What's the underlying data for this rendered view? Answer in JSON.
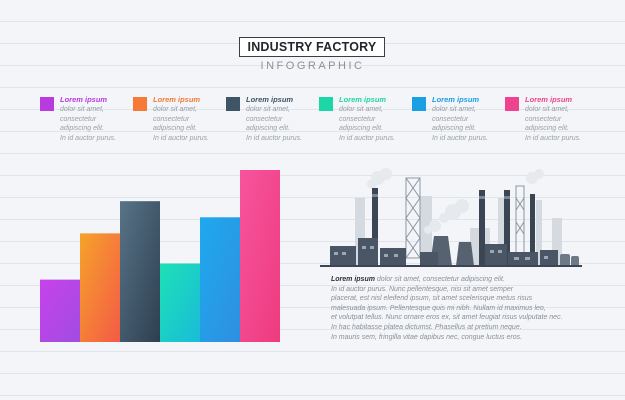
{
  "header": {
    "title": "INDUSTRY FACTORY",
    "subtitle": "INFOGRAPHIC"
  },
  "legend": [
    {
      "title": "Lorem ipsum",
      "body": [
        "dolor sit amet,",
        "consectetur",
        "adipiscing elit.",
        "In id auctor purus."
      ],
      "color": "#b93be0"
    },
    {
      "title": "Lorem ipsum",
      "body": [
        "dolor sit amet,",
        "consectetur",
        "adipiscing elit.",
        "In id auctor purus."
      ],
      "color": "#f57a36"
    },
    {
      "title": "Lorem ipsum",
      "body": [
        "dolor sit amet,",
        "consectetur",
        "adipiscing elit.",
        "In id auctor purus."
      ],
      "color": "#3e5568"
    },
    {
      "title": "Lorem ipsum",
      "body": [
        "dolor sit amet,",
        "consectetur",
        "adipiscing elit.",
        "In id auctor purus."
      ],
      "color": "#1dd6a6"
    },
    {
      "title": "Lorem ipsum",
      "body": [
        "dolor sit amet,",
        "consectetur",
        "adipiscing elit.",
        "In id auctor purus."
      ],
      "color": "#1a9fe3"
    },
    {
      "title": "Lorem ipsum",
      "body": [
        "dolor sit amet,",
        "consectetur",
        "adipiscing elit.",
        "In id auctor purus."
      ],
      "color": "#f0438f"
    }
  ],
  "chart_data": {
    "type": "bar",
    "values": [
      62,
      108,
      140,
      78,
      124,
      171
    ],
    "colors": [
      [
        "#c742ea",
        "#a14ce3"
      ],
      [
        "#f6a22b",
        "#f45a46"
      ],
      [
        "#587387",
        "#2d3f50"
      ],
      [
        "#1de0b5",
        "#19bcd8"
      ],
      [
        "#1ea9ee",
        "#2f8fe0"
      ],
      [
        "#f7549d",
        "#ee3b7f"
      ]
    ],
    "ylim": [
      0,
      171
    ]
  },
  "description": {
    "title": "Lorem ipsum",
    "lines": [
      "dolor sit amet, consectetur adipiscing elit.",
      "In id auctor purus. Nunc pellentesque, nisi sit amet semper",
      "placerat, est nisl eleifend ipsum, sit amet scelerisque metus risus",
      "malesuada ipsum. Pellentesque quis mi nibh. Nullam id maximus leo,",
      "et volutpat tellus. Nunc ornare eros ex, sit amet feugiat risus vulputate nec.",
      "In hac habitasse platea dictumst. Phasellus at pretium neque.",
      "In mauris sem, fringilla vitae dapibus nec, congue luctus eros."
    ]
  }
}
